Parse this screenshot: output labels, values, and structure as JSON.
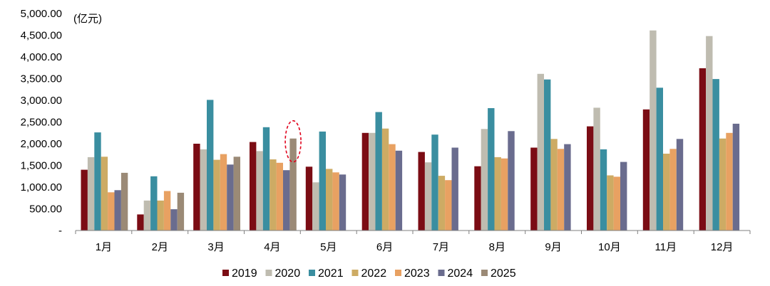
{
  "chart_data": {
    "type": "bar",
    "title": "",
    "unit_label": "(亿元)",
    "xlabel": "",
    "ylabel": "",
    "ylim": [
      0,
      5000
    ],
    "y_ticks": [
      "-",
      "500.00",
      "1,000.00",
      "1,500.00",
      "2,000.00",
      "2,500.00",
      "3,000.00",
      "3,500.00",
      "4,000.00",
      "4,500.00",
      "5,000.00"
    ],
    "grid": false,
    "legend_position": "bottom",
    "categories": [
      "1月",
      "2月",
      "3月",
      "4月",
      "5月",
      "6月",
      "7月",
      "8月",
      "9月",
      "10月",
      "11月",
      "12月"
    ],
    "series": [
      {
        "name": "2019",
        "color": "#7b0c14",
        "values": [
          1400,
          370,
          2000,
          2040,
          1470,
          2250,
          1810,
          1480,
          1910,
          2400,
          2790,
          3740
        ]
      },
      {
        "name": "2020",
        "color": "#bfbcb0",
        "values": [
          1690,
          690,
          1870,
          1830,
          1110,
          2250,
          1570,
          2340,
          3610,
          2830,
          4610,
          4480
        ]
      },
      {
        "name": "2021",
        "color": "#3a8ea0",
        "values": [
          2260,
          1250,
          3010,
          2380,
          2280,
          2730,
          2210,
          2820,
          3480,
          1870,
          3290,
          3490
        ]
      },
      {
        "name": "2022",
        "color": "#cdab64",
        "values": [
          1700,
          690,
          1630,
          1640,
          1420,
          2350,
          1260,
          1690,
          2110,
          1270,
          1770,
          2120
        ]
      },
      {
        "name": "2023",
        "color": "#e8a162",
        "values": [
          880,
          910,
          1760,
          1560,
          1340,
          1990,
          1160,
          1660,
          1880,
          1240,
          1880,
          2250
        ]
      },
      {
        "name": "2024",
        "color": "#6a6c8e",
        "values": [
          930,
          490,
          1520,
          1390,
          1290,
          1840,
          1910,
          2290,
          1990,
          1580,
          2110,
          2460
        ]
      },
      {
        "name": "2025",
        "color": "#9b8a76",
        "values": [
          1330,
          870,
          1700,
          2120,
          null,
          null,
          null,
          null,
          null,
          null,
          null,
          null
        ]
      }
    ],
    "annotation": {
      "type": "dashed-ellipse",
      "color": "#e0001b",
      "category": "4月",
      "series": "2025"
    }
  }
}
